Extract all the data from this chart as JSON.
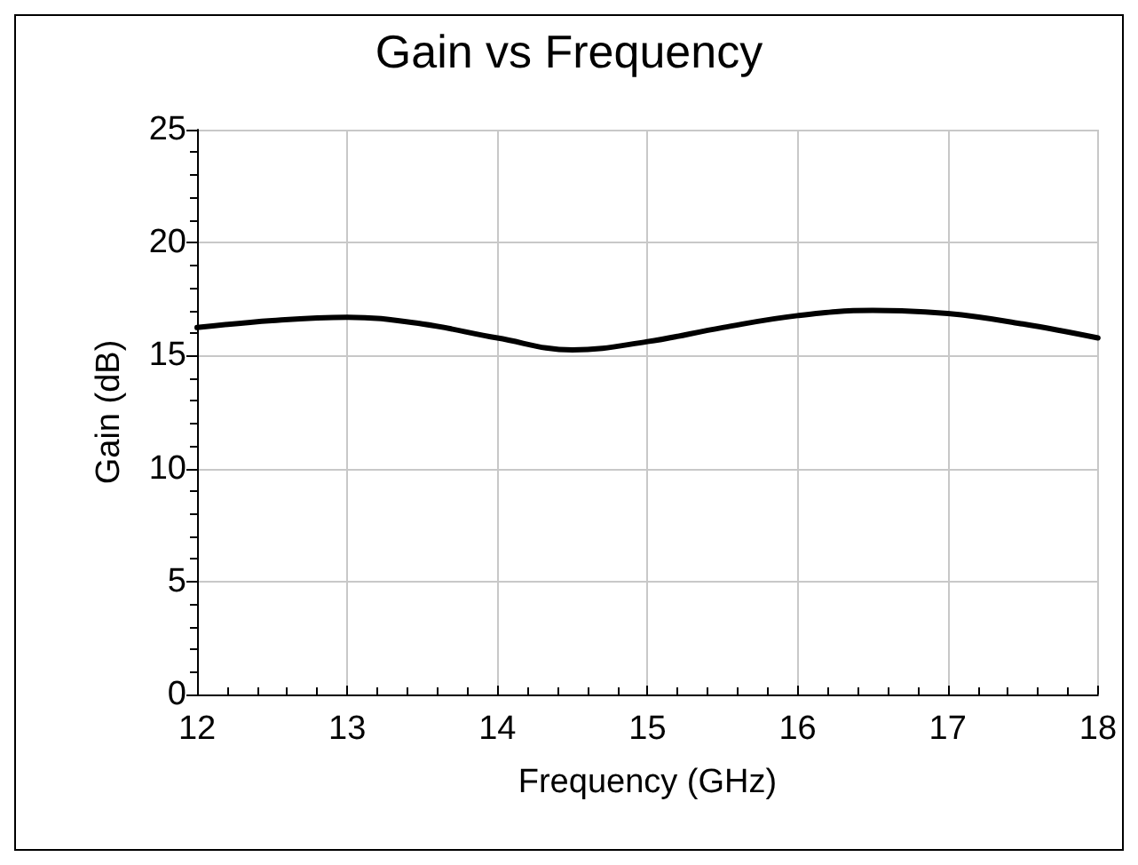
{
  "chart_data": {
    "type": "line",
    "title": "Gain vs Frequency",
    "xlabel": "Frequency (GHz)",
    "ylabel": "Gain (dB)",
    "x": [
      12,
      12.5,
      13,
      13.5,
      14,
      14.5,
      15,
      15.5,
      16,
      16.5,
      17,
      17.5,
      18
    ],
    "series": [
      {
        "color": "#000000",
        "values": [
          16.24,
          16.55,
          16.7,
          16.4,
          15.78,
          15.25,
          15.62,
          16.24,
          16.77,
          17.0,
          16.86,
          16.4,
          15.78
        ]
      }
    ],
    "xlim": [
      12,
      18
    ],
    "xticks": [
      12,
      13,
      14,
      15,
      16,
      17,
      18
    ],
    "ylim": [
      0,
      25
    ],
    "yticks": [
      0,
      5,
      10,
      15,
      20,
      25
    ],
    "grid": true,
    "marker": "none",
    "line_style": "solid"
  }
}
